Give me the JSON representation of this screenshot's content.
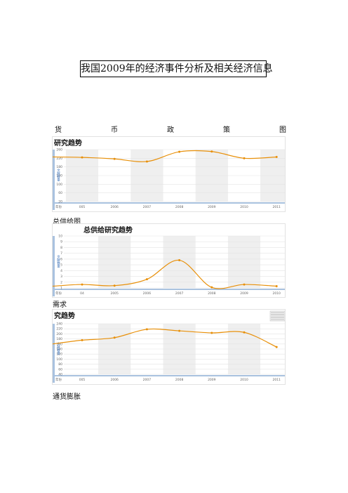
{
  "document": {
    "title": "我国2009年的经济事件分析及相关经济信息",
    "section1_caption_chars": [
      "货",
      "币",
      "政",
      "策",
      "图"
    ],
    "section2_caption": "总供给图",
    "section3_caption": "需求",
    "section4_caption": "通货膨胀"
  },
  "colors": {
    "line": "#e8900a",
    "band": "#efefef",
    "left_bar": "#a9c2df",
    "grid": "#e3e3e3"
  },
  "chart_data": [
    {
      "type": "line",
      "title": "研究趋势",
      "ylabel": "文献数量",
      "xlabel": "年份",
      "x": [
        "2005",
        "2006",
        "2007",
        "2008",
        "2009",
        "2010",
        "2011"
      ],
      "x_tick_labels": [
        "005",
        "2006",
        "2007",
        "2008",
        "2009",
        "2010",
        "2011"
      ],
      "y": [
        224,
        217,
        205,
        250,
        251,
        220,
        226
      ],
      "y_start_at_edge": 226,
      "yticks": [
        20,
        60,
        100,
        140,
        180,
        220,
        260
      ],
      "ylim": [
        20,
        260
      ],
      "grid": true,
      "band_columns": [
        0,
        2,
        4,
        6
      ]
    },
    {
      "type": "line",
      "title": "总供给研究趋势",
      "ylabel": "文献数量",
      "xlabel": "年份",
      "x": [
        "2004",
        "2005",
        "2006",
        "2007",
        "2008",
        "2009",
        "2010"
      ],
      "x_tick_labels": [
        "04",
        "2005",
        "2006",
        "2007",
        "2008",
        "2009",
        "2010"
      ],
      "y": [
        1.6,
        1.4,
        2.5,
        5.8,
        1.1,
        1.6,
        1.3
      ],
      "y_start_at_edge": 1.3,
      "yticks": [
        1,
        2,
        3,
        4,
        5,
        6,
        7,
        8,
        9,
        10
      ],
      "ylim": [
        1,
        10
      ],
      "grid": true,
      "band_columns": [
        1,
        3,
        5,
        7
      ]
    },
    {
      "type": "line",
      "title": "究趋势",
      "ylabel": "文献数量",
      "xlabel": "年份",
      "x": [
        "2005",
        "2006",
        "2007",
        "2008",
        "2009",
        "2010",
        "2011"
      ],
      "x_tick_labels": [
        "005",
        "2006",
        "2007",
        "2008",
        "2009",
        "2010",
        "2011"
      ],
      "y": [
        175,
        185,
        218,
        212,
        204,
        206,
        148
      ],
      "y_start_at_edge": 160,
      "yticks": [
        40,
        60,
        80,
        100,
        120,
        140,
        160,
        180,
        200,
        220,
        240
      ],
      "ylim": [
        40,
        240
      ],
      "grid": true,
      "band_columns": [
        1,
        3,
        5
      ]
    }
  ]
}
